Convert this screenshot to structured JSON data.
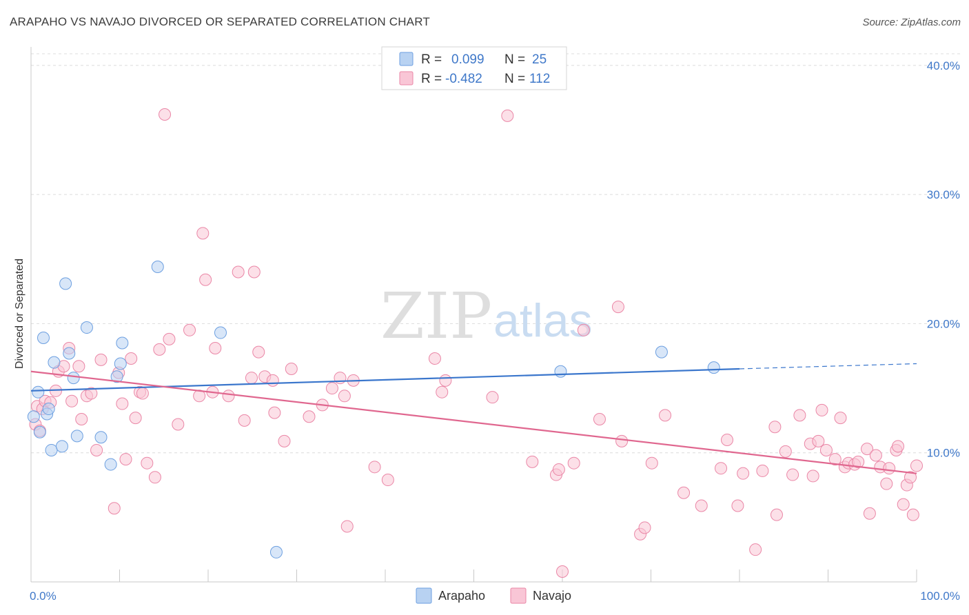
{
  "header": {
    "title": "ARAPAHO VS NAVAJO DIVORCED OR SEPARATED CORRELATION CHART",
    "source": "Source: ZipAtlas.com"
  },
  "watermark": {
    "zip": "ZIP",
    "atlas": "atlas"
  },
  "legend": {
    "rows": [
      {
        "r_label": "R =",
        "r_value": "0.099",
        "n_label": "N =",
        "n_value": "25",
        "color": "#b8d2f2",
        "stroke": "#6c9fe0"
      },
      {
        "r_label": "R =",
        "r_value": "-0.482",
        "n_label": "N =",
        "n_value": "112",
        "color": "#f9c6d6",
        "stroke": "#ea86a6"
      }
    ]
  },
  "chart_data": {
    "type": "scatter",
    "ylabel": "Divorced or Separated",
    "xlim": [
      0,
      100
    ],
    "ylim": [
      0,
      40
    ],
    "x_ticks": [
      {
        "v": 0,
        "label": "0.0%"
      },
      {
        "v": 100,
        "label": "100.0%"
      }
    ],
    "y_ticks": [
      {
        "v": 10,
        "label": "10.0%"
      },
      {
        "v": 20,
        "label": "20.0%"
      },
      {
        "v": 30,
        "label": "30.0%"
      },
      {
        "v": 40,
        "label": "40.0%"
      }
    ],
    "grid": true,
    "series": [
      {
        "name": "Arapaho",
        "color": "#b8d2f2",
        "stroke": "#6c9fe0",
        "line_color": "#3a76cc",
        "trend": {
          "x0": 0,
          "y0": 14.8,
          "x1": 80,
          "y1": 16.5,
          "dash_to_x": 100,
          "dash_to_y": 16.9
        },
        "points": [
          [
            0.3,
            12.8
          ],
          [
            0.8,
            14.7
          ],
          [
            1.0,
            11.6
          ],
          [
            1.4,
            18.9
          ],
          [
            1.8,
            13.0
          ],
          [
            2.0,
            13.4
          ],
          [
            2.3,
            10.2
          ],
          [
            2.6,
            17.0
          ],
          [
            3.5,
            10.5
          ],
          [
            3.9,
            23.1
          ],
          [
            4.3,
            17.7
          ],
          [
            4.8,
            15.8
          ],
          [
            5.2,
            11.3
          ],
          [
            6.3,
            19.7
          ],
          [
            7.9,
            11.2
          ],
          [
            9.0,
            9.1
          ],
          [
            9.7,
            15.9
          ],
          [
            10.1,
            16.9
          ],
          [
            10.3,
            18.5
          ],
          [
            14.3,
            24.4
          ],
          [
            21.4,
            19.3
          ],
          [
            27.7,
            2.3
          ],
          [
            59.8,
            16.3
          ],
          [
            71.2,
            17.8
          ],
          [
            77.1,
            16.6
          ]
        ]
      },
      {
        "name": "Navajo",
        "color": "#f9c6d6",
        "stroke": "#ea86a6",
        "line_color": "#e0678f",
        "trend": {
          "x0": 0,
          "y0": 16.3,
          "x1": 100,
          "y1": 8.4
        },
        "points": [
          [
            0.5,
            12.2
          ],
          [
            0.7,
            13.6
          ],
          [
            1.0,
            11.7
          ],
          [
            1.3,
            13.4
          ],
          [
            1.6,
            14.0
          ],
          [
            2.2,
            13.9
          ],
          [
            2.8,
            14.8
          ],
          [
            3.1,
            16.3
          ],
          [
            3.7,
            16.7
          ],
          [
            4.3,
            18.1
          ],
          [
            4.6,
            14.0
          ],
          [
            5.4,
            16.7
          ],
          [
            5.7,
            12.6
          ],
          [
            6.3,
            14.4
          ],
          [
            6.8,
            14.6
          ],
          [
            7.4,
            10.2
          ],
          [
            7.9,
            17.2
          ],
          [
            9.4,
            5.7
          ],
          [
            9.9,
            16.2
          ],
          [
            10.3,
            13.8
          ],
          [
            10.7,
            9.5
          ],
          [
            11.3,
            17.3
          ],
          [
            11.8,
            12.7
          ],
          [
            12.3,
            14.7
          ],
          [
            12.6,
            14.6
          ],
          [
            13.1,
            9.2
          ],
          [
            14.0,
            8.1
          ],
          [
            14.5,
            18.0
          ],
          [
            15.1,
            36.2
          ],
          [
            15.6,
            18.8
          ],
          [
            16.6,
            12.2
          ],
          [
            17.9,
            19.5
          ],
          [
            19.0,
            14.4
          ],
          [
            19.4,
            27.0
          ],
          [
            19.7,
            23.4
          ],
          [
            20.5,
            14.7
          ],
          [
            20.8,
            18.1
          ],
          [
            22.3,
            14.4
          ],
          [
            23.4,
            24.0
          ],
          [
            24.1,
            12.5
          ],
          [
            24.9,
            15.8
          ],
          [
            25.2,
            24.0
          ],
          [
            25.7,
            17.8
          ],
          [
            26.4,
            15.9
          ],
          [
            27.3,
            15.6
          ],
          [
            27.5,
            13.1
          ],
          [
            28.6,
            10.9
          ],
          [
            29.4,
            16.5
          ],
          [
            31.4,
            12.8
          ],
          [
            32.9,
            13.7
          ],
          [
            34.0,
            15.0
          ],
          [
            34.9,
            15.8
          ],
          [
            35.4,
            14.4
          ],
          [
            35.7,
            4.3
          ],
          [
            36.4,
            15.6
          ],
          [
            38.8,
            8.9
          ],
          [
            40.3,
            7.9
          ],
          [
            45.6,
            17.3
          ],
          [
            46.4,
            14.7
          ],
          [
            46.8,
            15.6
          ],
          [
            52.1,
            14.3
          ],
          [
            53.8,
            36.1
          ],
          [
            56.6,
            9.3
          ],
          [
            59.3,
            8.3
          ],
          [
            59.6,
            8.7
          ],
          [
            60.0,
            0.8
          ],
          [
            61.3,
            9.2
          ],
          [
            62.4,
            19.5
          ],
          [
            64.2,
            12.6
          ],
          [
            66.3,
            21.3
          ],
          [
            66.7,
            10.9
          ],
          [
            68.8,
            3.7
          ],
          [
            69.3,
            4.2
          ],
          [
            70.1,
            9.2
          ],
          [
            71.6,
            12.9
          ],
          [
            73.7,
            6.9
          ],
          [
            75.7,
            5.9
          ],
          [
            77.9,
            8.8
          ],
          [
            78.6,
            11.0
          ],
          [
            79.8,
            5.9
          ],
          [
            80.4,
            8.4
          ],
          [
            81.8,
            2.5
          ],
          [
            82.6,
            8.6
          ],
          [
            84.0,
            12.0
          ],
          [
            84.2,
            5.2
          ],
          [
            85.2,
            10.1
          ],
          [
            86.0,
            8.3
          ],
          [
            86.8,
            12.9
          ],
          [
            88.0,
            10.7
          ],
          [
            88.3,
            8.2
          ],
          [
            88.9,
            10.9
          ],
          [
            89.3,
            13.3
          ],
          [
            89.8,
            10.2
          ],
          [
            90.8,
            9.5
          ],
          [
            91.4,
            12.7
          ],
          [
            91.9,
            8.9
          ],
          [
            92.3,
            9.2
          ],
          [
            93.0,
            9.1
          ],
          [
            93.4,
            9.3
          ],
          [
            94.4,
            10.3
          ],
          [
            94.7,
            5.3
          ],
          [
            95.4,
            9.8
          ],
          [
            95.9,
            8.9
          ],
          [
            96.6,
            7.6
          ],
          [
            96.9,
            8.8
          ],
          [
            97.7,
            10.2
          ],
          [
            97.9,
            10.5
          ],
          [
            98.5,
            6.0
          ],
          [
            98.9,
            7.5
          ],
          [
            99.3,
            8.1
          ],
          [
            99.6,
            5.2
          ],
          [
            100.0,
            9.0
          ]
        ]
      }
    ]
  }
}
